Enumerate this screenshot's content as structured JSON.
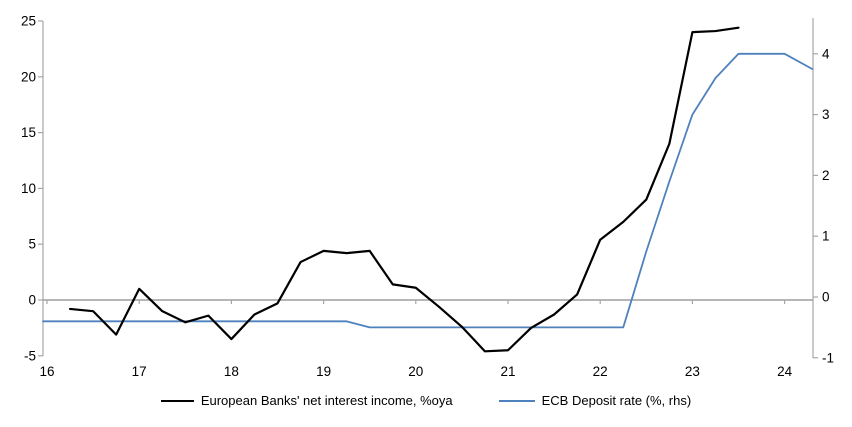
{
  "chart_data": {
    "type": "line",
    "title": "",
    "x_axis": {
      "tick_labels": [
        "16",
        "17",
        "18",
        "19",
        "20",
        "21",
        "22",
        "23",
        "24"
      ],
      "ticks": [
        16,
        17,
        18,
        19,
        20,
        21,
        22,
        23,
        24
      ],
      "range": [
        16,
        24.33
      ]
    },
    "y_left_axis": {
      "tick_labels": [
        "-5",
        "0",
        "5",
        "10",
        "15",
        "20",
        "25"
      ],
      "ticks": [
        -5,
        0,
        5,
        10,
        15,
        20,
        25
      ],
      "range": [
        -5,
        25
      ]
    },
    "y_right_axis": {
      "tick_labels": [
        "-1",
        "0",
        "1",
        "2",
        "3",
        "4"
      ],
      "ticks": [
        -1,
        0,
        1,
        2,
        3,
        4
      ],
      "range": [
        -1,
        4.6
      ]
    },
    "grid": "zero-line-only",
    "legend_position": "bottom",
    "series": [
      {
        "name": "European Banks' net interest income, %oya",
        "axis": "left",
        "color": "#000000",
        "stroke_width": 2.2,
        "points": [
          [
            16.25,
            -0.8
          ],
          [
            16.5,
            -1.0
          ],
          [
            16.75,
            -3.1
          ],
          [
            17.0,
            1.0
          ],
          [
            17.25,
            -1.0
          ],
          [
            17.5,
            -2.0
          ],
          [
            17.75,
            -1.4
          ],
          [
            18.0,
            -3.5
          ],
          [
            18.25,
            -1.3
          ],
          [
            18.5,
            -0.3
          ],
          [
            18.75,
            3.4
          ],
          [
            19.0,
            4.4
          ],
          [
            19.25,
            4.2
          ],
          [
            19.5,
            4.4
          ],
          [
            19.75,
            1.4
          ],
          [
            20.0,
            1.1
          ],
          [
            20.25,
            -0.6
          ],
          [
            20.5,
            -2.4
          ],
          [
            20.75,
            -4.6
          ],
          [
            21.0,
            -4.5
          ],
          [
            21.25,
            -2.5
          ],
          [
            21.5,
            -1.3
          ],
          [
            21.75,
            0.5
          ],
          [
            22.0,
            5.4
          ],
          [
            22.25,
            7.0
          ],
          [
            22.5,
            9.0
          ],
          [
            22.75,
            14.0
          ],
          [
            23.0,
            24.0
          ],
          [
            23.25,
            24.1
          ],
          [
            23.5,
            24.4
          ]
        ]
      },
      {
        "name": "ECB Deposit rate (%, rhs)",
        "axis": "right",
        "color": "#4F81BD",
        "stroke_width": 1.8,
        "points": [
          [
            16.0,
            -0.4
          ],
          [
            19.25,
            -0.4
          ],
          [
            19.5,
            -0.5
          ],
          [
            22.25,
            -0.5
          ],
          [
            22.5,
            0.75
          ],
          [
            22.75,
            1.9
          ],
          [
            23.0,
            3.0
          ],
          [
            23.25,
            3.6
          ],
          [
            23.5,
            4.0
          ],
          [
            24.0,
            4.0
          ],
          [
            24.3,
            3.75
          ]
        ]
      }
    ]
  },
  "legend": {
    "series0_label": "European Banks' net interest income, %oya",
    "series1_label": "ECB Deposit rate (%, rhs)"
  },
  "colors": {
    "line_nii": "#000000",
    "line_ecb": "#4F81BD",
    "axis": "#A6A6A6",
    "zero_line": "#9E9E9E",
    "label": "#000000",
    "background": "#FFFFFF"
  }
}
